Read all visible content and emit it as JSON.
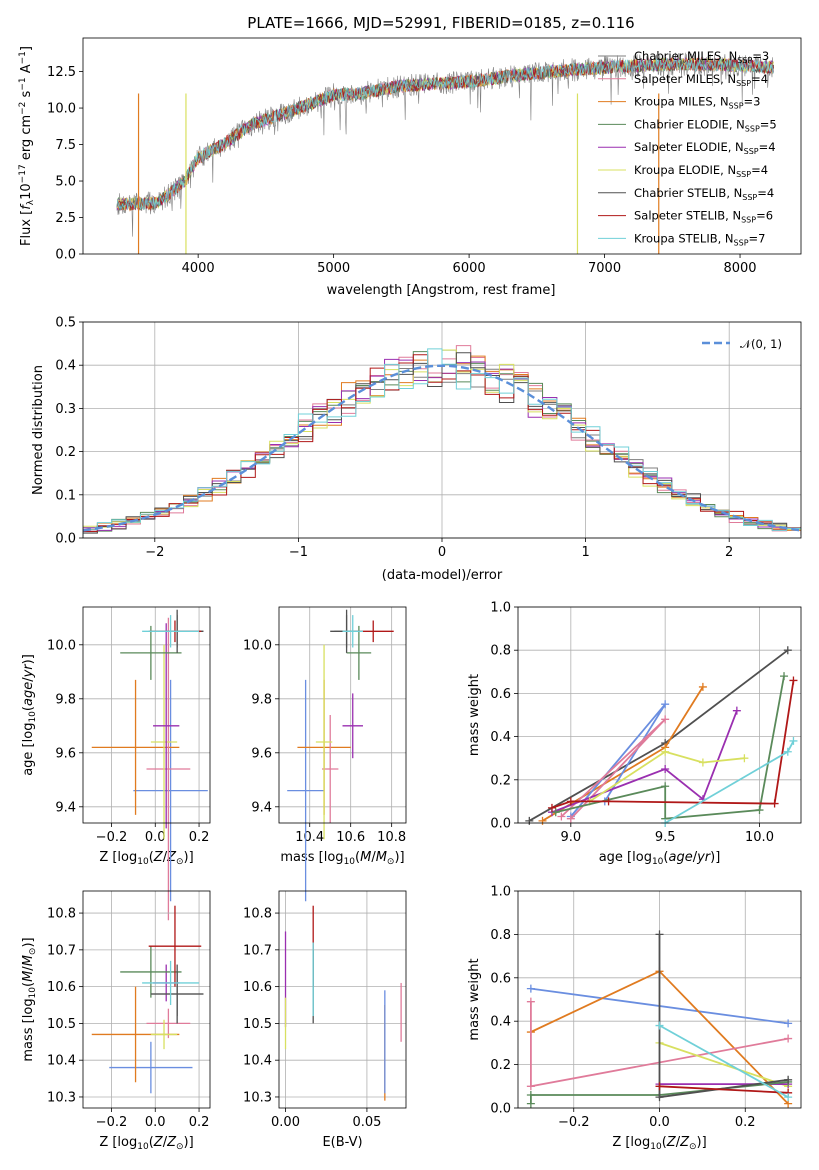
{
  "colors": {
    "chabrier_miles": "#7f7f7f",
    "salpeter_miles": "#e07b9a",
    "kroupa_miles": "#e07b20",
    "chabrier_elodie": "#5a8a5a",
    "salpeter_elodie": "#9a2fb0",
    "kroupa_elodie": "#d8e060",
    "chabrier_stelib": "#505050",
    "salpeter_stelib": "#b01818",
    "kroupa_stelib": "#70d0d8",
    "blue": "#6a8ee0",
    "gaussian": "#5b8fd9"
  },
  "chart_data": [
    {
      "id": "spectrum",
      "type": "line",
      "title": "PLATE=1666, MJD=52991, FIBERID=0185, z=0.116",
      "xlabel": "wavelength [Angstrom, rest frame]",
      "ylabel": "Flux [fλ10⁻¹⁷ erg cm⁻² s⁻¹ A⁻¹]",
      "xlim": [
        3150,
        8450
      ],
      "ylim": [
        0,
        14.8
      ],
      "xticks": [
        "4000",
        "5000",
        "6000",
        "7000",
        "8000"
      ],
      "yticks": [
        "0.0",
        "2.5",
        "5.0",
        "7.5",
        "10.0",
        "12.5"
      ],
      "grid": false,
      "legend_position": "right",
      "legend": [
        "Chabrier MILES, N_SSP=3",
        "Salpeter MILES, N_SSP=4",
        "Kroupa MILES, N_SSP=3",
        "Chabrier ELODIE, N_SSP=5",
        "Salpeter ELODIE, N_SSP=4",
        "Kroupa ELODIE, N_SSP=4",
        "Chabrier STELIB, N_SSP=4",
        "Salpeter STELIB, N_SSP=6",
        "Kroupa STELIB, N_SSP=7"
      ],
      "legend_html": [
        "Chabrier MILES, N<tspan font-size='8' dy='3'>SSP</tspan><tspan dy='-3'>=3</tspan>",
        "Salpeter MILES, N<tspan font-size='8' dy='3'>SSP</tspan><tspan dy='-3'>=4</tspan>",
        "Kroupa MILES, N<tspan font-size='8' dy='3'>SSP</tspan><tspan dy='-3'>=3</tspan>",
        "Chabrier ELODIE, N<tspan font-size='8' dy='3'>SSP</tspan><tspan dy='-3'>=5</tspan>",
        "Salpeter ELODIE, N<tspan font-size='8' dy='3'>SSP</tspan><tspan dy='-3'>=4</tspan>",
        "Kroupa ELODIE, N<tspan font-size='8' dy='3'>SSP</tspan><tspan dy='-3'>=4</tspan>",
        "Chabrier STELIB, N<tspan font-size='8' dy='3'>SSP</tspan><tspan dy='-3'>=4</tspan>",
        "Salpeter STELIB, N<tspan font-size='8' dy='3'>SSP</tspan><tspan dy='-3'>=6</tspan>",
        "Kroupa STELIB, N<tspan font-size='8' dy='3'>SSP</tspan><tspan dy='-3'>=7</tspan>"
      ],
      "continuum": {
        "x": [
          3400,
          3700,
          3900,
          4000,
          4200,
          4400,
          4600,
          4800,
          5000,
          5200,
          5500,
          5800,
          6000,
          6300,
          6600,
          6900,
          7200,
          7500,
          7800,
          8000,
          8250
        ],
        "y": [
          3.4,
          3.5,
          5.0,
          6.6,
          7.6,
          8.9,
          9.5,
          10.2,
          10.9,
          11.0,
          11.5,
          11.7,
          11.8,
          12.2,
          12.5,
          12.7,
          12.9,
          13.0,
          13.0,
          12.9,
          12.8
        ]
      },
      "dropouts_x": [
        3560,
        3910,
        6800,
        7400
      ]
    },
    {
      "id": "residuals",
      "type": "step",
      "xlabel": "(data-model)/error",
      "ylabel": "Normed distribution",
      "xlim": [
        -2.5,
        2.5
      ],
      "ylim": [
        0,
        0.5
      ],
      "xticks": [
        "−2",
        "−1",
        "0",
        "1",
        "2"
      ],
      "yticks": [
        "0.0",
        "0.1",
        "0.2",
        "0.3",
        "0.4",
        "0.5"
      ],
      "grid": true,
      "legend": [
        "𝒩(0, 1)"
      ],
      "legend_position": "top-right",
      "bin_width": 0.1
    },
    {
      "id": "age_vs_Z",
      "type": "errorbar",
      "xlabel_html": "Z [log<tspan font-size='9' dy='3'>10</tspan><tspan dy='-3'>(</tspan><tspan font-style='italic'>Z</tspan>/<tspan font-style='italic'>Z</tspan><tspan font-size='9' dy='3'>⊙</tspan><tspan dy='-3'>)]</tspan>",
      "ylabel_html": "age  [log<tspan font-size='9' dy='3'>10</tspan><tspan dy='-3'>(</tspan><tspan font-style='italic'>age</tspan>/<tspan font-style='italic'>yr</tspan>)]",
      "xlim": [
        -0.33,
        0.25
      ],
      "ylim": [
        9.34,
        10.14
      ],
      "xticks": [
        "−0.2",
        "0.0",
        "0.2"
      ],
      "xtick_values": [
        -0.2,
        0.0,
        0.2
      ],
      "yticks": [
        "9.4",
        "9.6",
        "9.8",
        "10.0"
      ],
      "ytick_values": [
        9.4,
        9.6,
        9.8,
        10.0
      ],
      "grid": true,
      "points": [
        {
          "c": "blue",
          "x": 0.07,
          "xe": 0.17,
          "y": 9.46,
          "ye": 0.41
        },
        {
          "c": "kroupa_miles",
          "x": -0.09,
          "xe": 0.2,
          "y": 9.62,
          "ye": 0.25
        },
        {
          "c": "salpeter_miles",
          "x": 0.06,
          "xe": 0.1,
          "y": 9.54,
          "ye": 0.56
        },
        {
          "c": "kroupa_elodie",
          "x": 0.04,
          "xe": 0.06,
          "y": 9.64,
          "ye": 0.36
        },
        {
          "c": "salpeter_elodie",
          "x": 0.05,
          "xe": 0.06,
          "y": 9.7,
          "ye": 0.38
        },
        {
          "c": "chabrier_elodie",
          "x": -0.02,
          "xe": 0.14,
          "y": 9.97,
          "ye": 0.1
        },
        {
          "c": "chabrier_miles",
          "x": 0.1,
          "xe": 0.12,
          "y": 10.05,
          "ye": 0.06
        },
        {
          "c": "chabrier_stelib",
          "x": 0.1,
          "xe": 0.12,
          "y": 10.05,
          "ye": 0.08
        },
        {
          "c": "salpeter_stelib",
          "x": 0.09,
          "xe": 0.12,
          "y": 10.05,
          "ye": 0.04
        },
        {
          "c": "kroupa_stelib",
          "x": 0.07,
          "xe": 0.13,
          "y": 10.05,
          "ye": 0.06
        }
      ]
    },
    {
      "id": "age_vs_mass",
      "type": "errorbar",
      "xlabel_html": "mass [log<tspan font-size='9' dy='3'>10</tspan><tspan dy='-3'>(</tspan><tspan font-style='italic'>M</tspan>/<tspan font-style='italic'>M</tspan><tspan font-size='9' dy='3'>⊙</tspan><tspan dy='-3'>)]</tspan>",
      "xlim": [
        10.25,
        10.87
      ],
      "ylim": [
        9.34,
        10.14
      ],
      "xticks": [
        "10.4",
        "10.6",
        "10.8"
      ],
      "xtick_values": [
        10.4,
        10.6,
        10.8
      ],
      "yticks": [
        "9.4",
        "9.6",
        "9.8",
        "10.0"
      ],
      "ytick_values": [
        9.4,
        9.6,
        9.8,
        10.0
      ],
      "grid": true,
      "points": [
        {
          "c": "blue",
          "x": 10.38,
          "xe": 0.09,
          "y": 9.46,
          "ye": 0.41
        },
        {
          "c": "kroupa_miles",
          "x": 10.47,
          "xe": 0.13,
          "y": 9.62,
          "ye": 0.25
        },
        {
          "c": "salpeter_miles",
          "x": 10.5,
          "xe": 0.04,
          "y": 9.54,
          "ye": 0.2
        },
        {
          "c": "kroupa_elodie",
          "x": 10.47,
          "xe": 0.04,
          "y": 9.64,
          "ye": 0.36
        },
        {
          "c": "salpeter_elodie",
          "x": 10.61,
          "xe": 0.05,
          "y": 9.7,
          "ye": 0.12
        },
        {
          "c": "chabrier_elodie",
          "x": 10.64,
          "xe": 0.06,
          "y": 9.97,
          "ye": 0.1
        },
        {
          "c": "chabrier_miles",
          "x": 10.58,
          "xe": 0.06,
          "y": 10.05,
          "ye": 0.06
        },
        {
          "c": "chabrier_stelib",
          "x": 10.58,
          "xe": 0.08,
          "y": 10.05,
          "ye": 0.08
        },
        {
          "c": "salpeter_stelib",
          "x": 10.71,
          "xe": 0.1,
          "y": 10.05,
          "ye": 0.04
        },
        {
          "c": "kroupa_stelib",
          "x": 10.61,
          "xe": 0.05,
          "y": 10.05,
          "ye": 0.06
        }
      ]
    },
    {
      "id": "weight_vs_age",
      "type": "line",
      "xlabel_html": "age  [log<tspan font-size='9' dy='3'>10</tspan><tspan dy='-3'>(</tspan><tspan font-style='italic'>age</tspan>/<tspan font-style='italic'>yr</tspan>)]",
      "ylabel": "mass weight",
      "xlim": [
        8.72,
        10.22
      ],
      "ylim": [
        0,
        1
      ],
      "xticks": [
        "9.0",
        "9.5",
        "10.0"
      ],
      "xtick_values": [
        9.0,
        9.5,
        10.0
      ],
      "yticks": [
        "0.0",
        "0.2",
        "0.4",
        "0.6",
        "0.8",
        "1.0"
      ],
      "ytick_values": [
        0,
        0.2,
        0.4,
        0.6,
        0.8,
        1.0
      ],
      "grid": true,
      "series": [
        {
          "c": "chabrier_stelib",
          "x": [
            8.78,
            9.5,
            10.15
          ],
          "y": [
            0.01,
            0.37,
            0.8
          ]
        },
        {
          "c": "kroupa_miles",
          "x": [
            8.85,
            9.5,
            9.7
          ],
          "y": [
            0.01,
            0.35,
            0.63
          ]
        },
        {
          "c": "blue",
          "x": [
            9.18,
            9.5,
            9.0
          ],
          "y": [
            0.1,
            0.55,
            0.03
          ]
        },
        {
          "c": "salpeter_miles",
          "x": [
            8.95,
            9.5,
            9.0
          ],
          "y": [
            0.03,
            0.48,
            0.02
          ]
        },
        {
          "c": "salpeter_elodie",
          "x": [
            8.9,
            9.5,
            9.7,
            9.88
          ],
          "y": [
            0.05,
            0.25,
            0.11,
            0.52
          ]
        },
        {
          "c": "kroupa_elodie",
          "x": [
            9.1,
            9.5,
            9.7,
            9.92
          ],
          "y": [
            0.1,
            0.33,
            0.28,
            0.3
          ]
        },
        {
          "c": "chabrier_elodie",
          "x": [
            8.92,
            9.5,
            9.5,
            10.0,
            10.13
          ],
          "y": [
            0.05,
            0.17,
            0.02,
            0.06,
            0.68
          ]
        },
        {
          "c": "salpeter_stelib",
          "x": [
            8.9,
            9.0,
            9.2,
            10.08,
            10.18
          ],
          "y": [
            0.07,
            0.1,
            0.1,
            0.09,
            0.66
          ]
        },
        {
          "c": "kroupa_stelib",
          "x": [
            9.5,
            10.15,
            10.18
          ],
          "y": [
            0.0,
            0.33,
            0.38
          ]
        }
      ]
    },
    {
      "id": "mass_vs_Z",
      "type": "errorbar",
      "xlabel_html": "Z [log<tspan font-size='9' dy='3'>10</tspan><tspan dy='-3'>(</tspan><tspan font-style='italic'>Z</tspan>/<tspan font-style='italic'>Z</tspan><tspan font-size='9' dy='3'>⊙</tspan><tspan dy='-3'>)]</tspan>",
      "ylabel_html": "mass [log<tspan font-size='9' dy='3'>10</tspan><tspan dy='-3'>(</tspan><tspan font-style='italic'>M</tspan>/<tspan font-style='italic'>M</tspan><tspan font-size='9' dy='3'>⊙</tspan><tspan dy='-3'>)]</tspan>",
      "xlim": [
        -0.33,
        0.25
      ],
      "ylim": [
        10.27,
        10.86
      ],
      "xticks": [
        "−0.2",
        "0.0",
        "0.2"
      ],
      "xtick_values": [
        -0.2,
        0.0,
        0.2
      ],
      "yticks": [
        "10.3",
        "10.4",
        "10.5",
        "10.6",
        "10.7",
        "10.8"
      ],
      "ytick_values": [
        10.3,
        10.4,
        10.5,
        10.6,
        10.7,
        10.8
      ],
      "grid": true,
      "points": [
        {
          "c": "blue",
          "x": -0.02,
          "xe": 0.19,
          "y": 10.38,
          "ye": 0.07
        },
        {
          "c": "kroupa_miles",
          "x": -0.09,
          "xe": 0.2,
          "y": 10.47,
          "ye": 0.13
        },
        {
          "c": "salpeter_miles",
          "x": 0.06,
          "xe": 0.1,
          "y": 10.5,
          "ye": 0.04
        },
        {
          "c": "kroupa_elodie",
          "x": 0.04,
          "xe": 0.06,
          "y": 10.47,
          "ye": 0.04
        },
        {
          "c": "salpeter_elodie",
          "x": 0.05,
          "xe": 0.06,
          "y": 10.61,
          "ye": 0.05
        },
        {
          "c": "chabrier_elodie",
          "x": -0.02,
          "xe": 0.14,
          "y": 10.64,
          "ye": 0.07
        },
        {
          "c": "chabrier_miles",
          "x": 0.1,
          "xe": 0.12,
          "y": 10.58,
          "ye": 0.06
        },
        {
          "c": "chabrier_stelib",
          "x": 0.1,
          "xe": 0.12,
          "y": 10.58,
          "ye": 0.08
        },
        {
          "c": "salpeter_stelib",
          "x": 0.09,
          "xe": 0.12,
          "y": 10.71,
          "ye": 0.11
        },
        {
          "c": "kroupa_stelib",
          "x": 0.07,
          "xe": 0.13,
          "y": 10.61,
          "ye": 0.06
        }
      ]
    },
    {
      "id": "mass_vs_ebv",
      "type": "errorbar",
      "xlabel": "E(B-V)",
      "xlim": [
        -0.004,
        0.074
      ],
      "ylim": [
        10.27,
        10.86
      ],
      "xticks": [
        "0.00",
        "0.05"
      ],
      "xtick_values": [
        0.0,
        0.05
      ],
      "yticks": [
        "10.3",
        "10.4",
        "10.5",
        "10.6",
        "10.7",
        "10.8"
      ],
      "ytick_values": [
        10.3,
        10.4,
        10.5,
        10.6,
        10.7,
        10.8
      ],
      "grid": true,
      "points": [
        {
          "c": "salpeter_elodie",
          "x": 0.0,
          "xe": 0,
          "y": 10.62,
          "ye": 0.13
        },
        {
          "c": "kroupa_elodie",
          "x": 0.0,
          "xe": 0,
          "y": 10.5,
          "ye": 0.07
        },
        {
          "c": "salpeter_stelib",
          "x": 0.017,
          "xe": 0,
          "y": 10.71,
          "ye": 0.11
        },
        {
          "c": "chabrier_stelib",
          "x": 0.017,
          "xe": 0,
          "y": 10.6,
          "ye": 0.1
        },
        {
          "c": "kroupa_stelib",
          "x": 0.017,
          "xe": 0,
          "y": 10.62,
          "ye": 0.1
        },
        {
          "c": "kroupa_miles",
          "x": 0.061,
          "xe": 0,
          "y": 10.42,
          "ye": 0.13
        },
        {
          "c": "blue",
          "x": 0.061,
          "xe": 0,
          "y": 10.45,
          "ye": 0.14
        },
        {
          "c": "salpeter_miles",
          "x": 0.071,
          "xe": 0,
          "y": 10.53,
          "ye": 0.08
        }
      ]
    },
    {
      "id": "weight_vs_Z",
      "type": "line",
      "xlabel_html": "Z [log<tspan font-size='9' dy='3'>10</tspan><tspan dy='-3'>(</tspan><tspan font-style='italic'>Z</tspan>/<tspan font-style='italic'>Z</tspan><tspan font-size='9' dy='3'>⊙</tspan><tspan dy='-3'>)]</tspan>",
      "ylabel": "mass weight",
      "xlim": [
        -0.33,
        0.33
      ],
      "ylim": [
        0,
        1
      ],
      "xticks": [
        "−0.2",
        "0.0",
        "0.2"
      ],
      "xtick_values": [
        -0.2,
        0.0,
        0.2
      ],
      "yticks": [
        "0.0",
        "0.2",
        "0.4",
        "0.6",
        "0.8",
        "1.0"
      ],
      "ytick_values": [
        0,
        0.2,
        0.4,
        0.6,
        0.8,
        1.0
      ],
      "grid": true,
      "series": [
        {
          "c": "blue",
          "x": [
            -0.3,
            0.3
          ],
          "y": [
            0.55,
            0.39
          ]
        },
        {
          "c": "kroupa_miles",
          "x": [
            -0.3,
            0.0,
            0.3
          ],
          "y": [
            0.35,
            0.63,
            0.02
          ]
        },
        {
          "c": "salpeter_miles",
          "x": [
            -0.3,
            -0.3,
            0.3
          ],
          "y": [
            0.49,
            0.1,
            0.32
          ]
        },
        {
          "c": "kroupa_elodie",
          "x": [
            0.0,
            0.3
          ],
          "y": [
            0.3,
            0.1
          ]
        },
        {
          "c": "salpeter_elodie",
          "x": [
            0.0,
            0.3
          ],
          "y": [
            0.11,
            0.11
          ]
        },
        {
          "c": "chabrier_elodie",
          "x": [
            -0.3,
            -0.3,
            0.0,
            0.3
          ],
          "y": [
            0.02,
            0.06,
            0.06,
            0.12
          ]
        },
        {
          "c": "chabrier_stelib",
          "x": [
            0.0,
            0.0,
            0.3
          ],
          "y": [
            0.8,
            0.05,
            0.13
          ]
        },
        {
          "c": "salpeter_stelib",
          "x": [
            0.0,
            0.3
          ],
          "y": [
            0.1,
            0.07
          ]
        },
        {
          "c": "kroupa_stelib",
          "x": [
            0.0,
            0.3
          ],
          "y": [
            0.38,
            0.05
          ]
        }
      ]
    }
  ]
}
